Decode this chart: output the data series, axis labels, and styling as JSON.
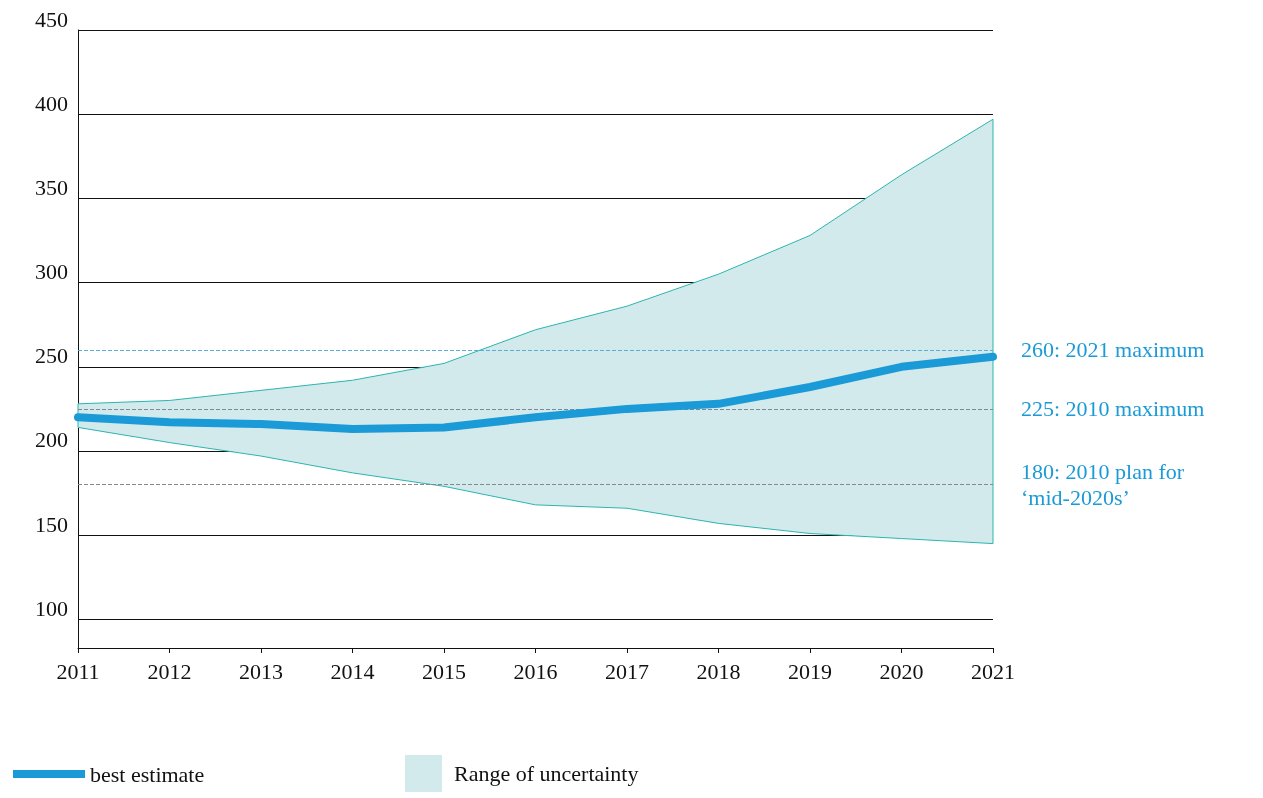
{
  "chart_data": {
    "type": "line",
    "categories": [
      "2011",
      "2012",
      "2013",
      "2014",
      "2015",
      "2016",
      "2017",
      "2018",
      "2019",
      "2020",
      "2021"
    ],
    "series": [
      {
        "name": "best estimate",
        "color": "#1a9ad6",
        "values": [
          220,
          217,
          216,
          213,
          214,
          220,
          225,
          228,
          238,
          250,
          256
        ],
        "lower": [
          214,
          205,
          197,
          187,
          179,
          168,
          166,
          157,
          151,
          148,
          145
        ],
        "upper": [
          228,
          230,
          236,
          242,
          252,
          272,
          286,
          305,
          328,
          364,
          397
        ]
      }
    ],
    "annotations": [
      "Range of uncertainty"
    ],
    "ylim": [
      83,
      450
    ],
    "yticks": [
      100,
      150,
      200,
      250,
      300,
      350,
      400,
      450
    ],
    "grid": "y",
    "legend": "bottom left",
    "line_style": "solid",
    "ref_lines": [
      {
        "axis": "y",
        "value": 260,
        "label": "260: 2021 maximum",
        "color": "#5aaedc",
        "line_style": "dashed"
      },
      {
        "axis": "y",
        "value": 225,
        "label": "225: 2010 maximum",
        "color": "#7a8a99",
        "line_style": "dashed"
      },
      {
        "axis": "y",
        "value": 180,
        "label": "180: 2010 plan for ‘mid-2020s’",
        "color": "#888888",
        "line_style": "dashed"
      }
    ]
  }
}
